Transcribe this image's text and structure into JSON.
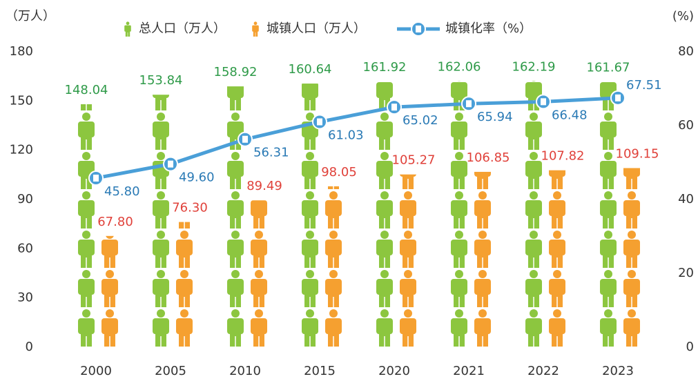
{
  "chart_data": {
    "type": "bar",
    "y_label": "（万人）",
    "y2_label": "(%)",
    "categories": [
      "2000",
      "2005",
      "2010",
      "2015",
      "2020",
      "2021",
      "2022",
      "2023"
    ],
    "series": [
      {
        "name": "总人口（万人）",
        "color": "#8cc63f",
        "label_color": "#2e9a48",
        "values": [
          148.04,
          153.84,
          158.92,
          160.64,
          161.92,
          162.06,
          162.19,
          161.67
        ],
        "value_labels": [
          "148.04",
          "153.84",
          "158.92",
          "160.64",
          "161.92",
          "162.06",
          "162.19",
          "161.67"
        ]
      },
      {
        "name": "城镇人口（万人）",
        "color": "#f5a030",
        "label_color": "#e0413a",
        "values": [
          67.8,
          76.3,
          89.49,
          98.05,
          105.27,
          106.85,
          107.82,
          109.15
        ],
        "value_labels": [
          "67.80",
          "76.30",
          "89.49",
          "98.05",
          "105.27",
          "106.85",
          "107.82",
          "109.15"
        ]
      },
      {
        "name": "城镇化率（%）",
        "type": "line",
        "axis": "y2",
        "color": "#4a9fd8",
        "label_color": "#2a7ab5",
        "values": [
          45.8,
          49.6,
          56.31,
          61.03,
          65.02,
          65.94,
          66.48,
          67.51
        ],
        "value_labels": [
          "45.80",
          "49.60",
          "56.31",
          "61.03",
          "65.02",
          "65.94",
          "66.48",
          "67.51"
        ]
      }
    ],
    "ylim": [
      0,
      180
    ],
    "yticks": [
      0,
      30,
      60,
      90,
      120,
      150,
      180
    ],
    "y2lim": [
      0,
      80
    ],
    "y2ticks": [
      0,
      20,
      40,
      60,
      80
    ]
  }
}
